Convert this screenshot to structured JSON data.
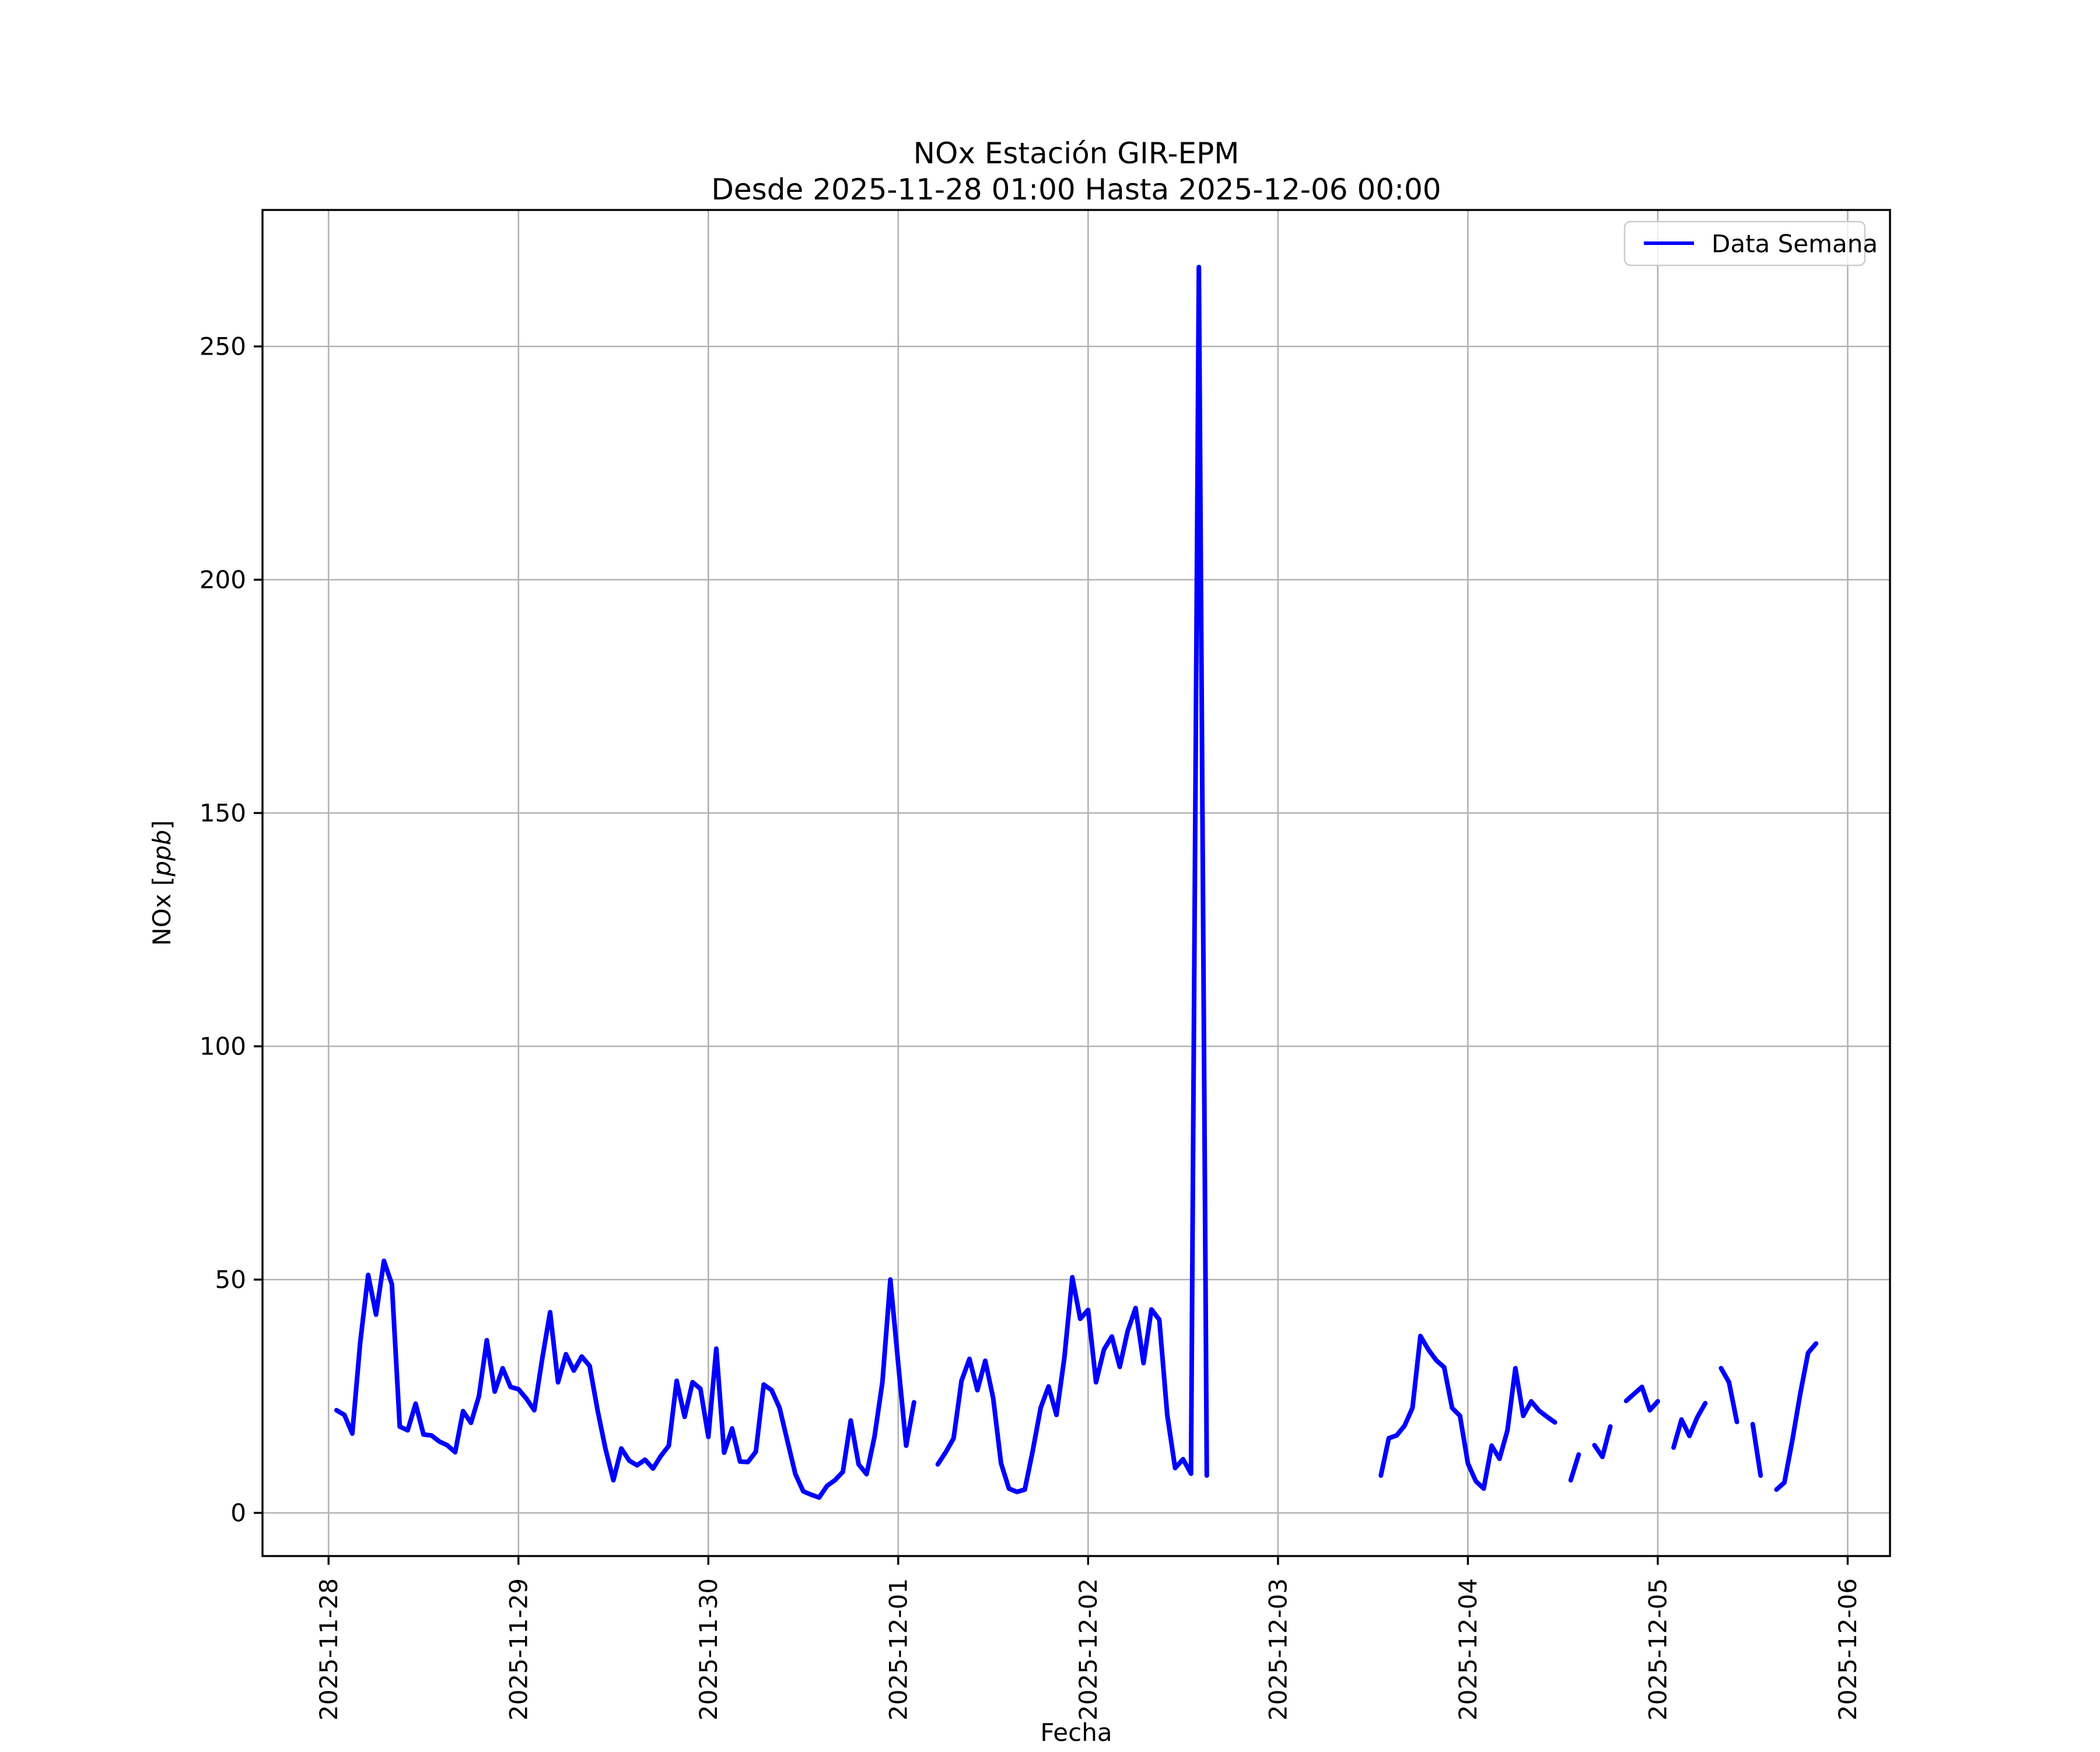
{
  "figure": {
    "title": "NOx Estación GIR-EPM",
    "subtitle": "Desde 2025-11-28 01:00 Hasta 2025-12-06 00:00"
  },
  "axes": {
    "xlabel": "Fecha",
    "ylabel_prefix": "NOx [",
    "ylabel_italic": "ppb",
    "ylabel_suffix": "]"
  },
  "legend": {
    "label": "Data Semana"
  },
  "colors": {
    "series_line": "#0000ff",
    "grid": "#b2b2b2",
    "spine": "#000000",
    "legend_border": "#cccccc",
    "legend_bg": "rgba(255,255,255,0.8)"
  },
  "chart_data": {
    "type": "line",
    "title": "NOx Estación GIR-EPM",
    "subtitle": "Desde 2025-11-28 01:00 Hasta 2025-12-06 00:00",
    "xlabel": "Fecha",
    "ylabel": "NOx [ppb]",
    "grid": true,
    "legend_position": "upper right",
    "time_origin": "2025-11-28 00:00",
    "cadence_hours": 1,
    "xlim_hours": [
      -8.35,
      197.35
    ],
    "ylim": [
      -9.25,
      279.25
    ],
    "y_ticks": [
      0,
      50,
      100,
      150,
      200,
      250
    ],
    "x_ticks": [
      {
        "h": 0,
        "label": "2025-11-28"
      },
      {
        "h": 24,
        "label": "2025-11-29"
      },
      {
        "h": 48,
        "label": "2025-11-30"
      },
      {
        "h": 72,
        "label": "2025-12-01"
      },
      {
        "h": 96,
        "label": "2025-12-02"
      },
      {
        "h": 120,
        "label": "2025-12-03"
      },
      {
        "h": 144,
        "label": "2025-12-04"
      },
      {
        "h": 168,
        "label": "2025-12-05"
      },
      {
        "h": 192,
        "label": "2025-12-06"
      }
    ],
    "series": [
      {
        "name": "Data Semana",
        "color": "#0000ff",
        "points": [
          [
            1,
            22
          ],
          [
            2,
            21
          ],
          [
            3,
            17
          ],
          [
            4,
            36.5
          ],
          [
            5,
            51
          ],
          [
            6,
            42.5
          ],
          [
            7,
            54
          ],
          [
            8,
            49
          ],
          [
            9,
            18.5
          ],
          [
            10,
            17.7
          ],
          [
            11,
            23.4
          ],
          [
            12,
            16.8
          ],
          [
            13,
            16.6
          ],
          [
            14,
            15.3
          ],
          [
            15,
            14.5
          ],
          [
            16,
            13
          ],
          [
            17,
            21.8
          ],
          [
            18,
            19.3
          ],
          [
            19,
            25
          ],
          [
            20,
            37
          ],
          [
            21,
            26
          ],
          [
            22,
            31
          ],
          [
            23,
            27
          ],
          [
            24,
            26.5
          ],
          [
            25,
            24.5
          ],
          [
            26,
            22
          ],
          [
            27,
            33
          ],
          [
            28,
            43
          ],
          [
            29,
            28
          ],
          [
            30,
            34
          ],
          [
            31,
            30.5
          ],
          [
            32,
            33.5
          ],
          [
            33,
            31.5
          ],
          [
            34,
            22
          ],
          [
            35,
            13.7
          ],
          [
            36,
            7
          ],
          [
            37,
            13.8
          ],
          [
            38,
            11.2
          ],
          [
            39,
            10.2
          ],
          [
            40,
            11.4
          ],
          [
            41,
            9.5
          ],
          [
            42,
            12.2
          ],
          [
            43,
            14.4
          ],
          [
            44,
            28.3
          ],
          [
            45,
            20.6
          ],
          [
            46,
            28
          ],
          [
            47,
            26.6
          ],
          [
            48,
            16.3
          ],
          [
            49,
            35.2
          ],
          [
            50,
            12.9
          ],
          [
            51,
            18.1
          ],
          [
            52,
            11
          ],
          [
            53,
            10.9
          ],
          [
            54,
            13.1
          ],
          [
            55,
            27.5
          ],
          [
            56,
            26.3
          ],
          [
            57,
            22.5
          ],
          [
            58,
            15.4
          ],
          [
            59,
            8.3
          ],
          [
            60,
            4.6
          ],
          [
            61,
            3.9
          ],
          [
            62,
            3.3
          ],
          [
            63,
            5.8
          ],
          [
            64,
            7
          ],
          [
            65,
            8.8
          ],
          [
            66,
            19.8
          ],
          [
            67,
            10.4
          ],
          [
            68,
            8.3
          ],
          [
            69,
            16.3
          ],
          [
            70,
            28
          ],
          [
            71,
            50
          ],
          [
            72,
            32
          ],
          [
            73,
            14.4
          ],
          [
            74,
            23.7
          ],
          null,
          [
            77,
            10.4
          ],
          [
            78,
            13
          ],
          [
            79,
            16
          ],
          [
            80,
            28.3
          ],
          [
            81,
            33
          ],
          [
            82,
            26.3
          ],
          [
            83,
            32.6
          ],
          [
            84,
            24.6
          ],
          [
            85,
            10.6
          ],
          [
            86,
            5.2
          ],
          [
            87,
            4.5
          ],
          [
            88,
            5
          ],
          [
            89,
            13.3
          ],
          [
            90,
            22.5
          ],
          [
            91,
            27.1
          ],
          [
            92,
            21
          ],
          [
            93,
            33.3
          ],
          [
            94,
            50.5
          ],
          [
            95,
            41.6
          ],
          [
            96,
            43.5
          ],
          [
            97,
            28
          ],
          [
            98,
            35
          ],
          [
            99,
            37.8
          ],
          [
            100,
            31.3
          ],
          [
            101,
            39
          ],
          [
            102,
            43.9
          ],
          [
            103,
            32.1
          ],
          [
            104,
            43.6
          ],
          [
            105,
            41.4
          ],
          [
            106,
            21
          ],
          [
            107,
            9.6
          ],
          [
            108,
            11.5
          ],
          [
            109,
            8.4
          ],
          [
            110,
            267
          ],
          [
            111,
            8
          ],
          null,
          [
            133,
            8
          ],
          [
            134,
            16
          ],
          [
            135,
            16.6
          ],
          [
            136,
            18.7
          ],
          [
            137,
            22.5
          ],
          [
            138,
            37.9
          ],
          [
            139,
            35
          ],
          [
            140,
            32.7
          ],
          [
            141,
            31.2
          ],
          [
            142,
            22.5
          ],
          [
            143,
            20.8
          ],
          [
            144,
            10.6
          ],
          [
            145,
            6.8
          ],
          [
            146,
            5.2
          ],
          [
            147,
            14.4
          ],
          [
            148,
            11.6
          ],
          [
            149,
            17.7
          ],
          [
            150,
            31
          ],
          [
            151,
            20.8
          ],
          [
            152,
            23.9
          ],
          [
            153,
            21.9
          ],
          [
            154,
            20.6
          ],
          [
            155,
            19.4
          ],
          null,
          [
            157,
            7
          ],
          [
            158,
            12.5
          ],
          null,
          [
            160,
            14.5
          ],
          [
            161,
            12
          ],
          [
            162,
            18.5
          ],
          null,
          [
            164,
            24
          ],
          [
            165,
            25.5
          ],
          [
            166,
            27
          ],
          [
            167,
            22
          ],
          [
            168,
            23.9
          ],
          null,
          [
            170,
            14
          ],
          [
            171,
            20
          ],
          [
            172,
            16.5
          ],
          [
            173,
            20.5
          ],
          [
            174,
            23.5
          ],
          null,
          [
            176,
            31
          ],
          [
            177,
            28
          ],
          [
            178,
            19.5
          ],
          null,
          [
            180,
            19
          ],
          [
            181,
            8
          ],
          null,
          [
            183,
            5
          ],
          [
            184,
            6.5
          ],
          [
            185,
            15.5
          ],
          [
            186,
            25.5
          ],
          [
            187,
            34.3
          ],
          [
            188,
            36.3
          ]
        ]
      }
    ]
  }
}
